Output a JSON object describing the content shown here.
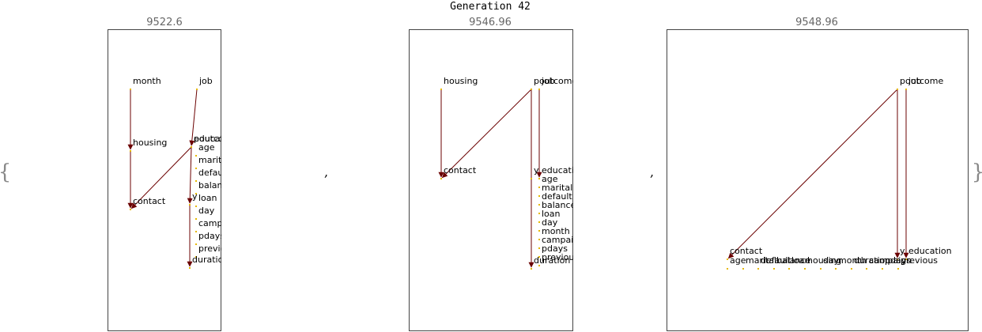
{
  "title": "Generation 42",
  "colors": {
    "edge": "#6b0000",
    "node": "#e6b800",
    "frame": "#444444"
  },
  "panels": [
    {
      "score": "9522.6",
      "nodes": [
        {
          "label": "month"
        },
        {
          "label": "job"
        },
        {
          "label": "housing"
        },
        {
          "label": "poutcome"
        },
        {
          "label": "education"
        },
        {
          "label": "age"
        },
        {
          "label": "marital"
        },
        {
          "label": "default"
        },
        {
          "label": "balance"
        },
        {
          "label": "loan"
        },
        {
          "label": "day"
        },
        {
          "label": "campaign"
        },
        {
          "label": "pdays"
        },
        {
          "label": "previous"
        },
        {
          "label": "contact"
        },
        {
          "label": "y"
        },
        {
          "label": "duration"
        }
      ],
      "edges": [
        [
          "month",
          "housing"
        ],
        [
          "housing",
          "contact"
        ],
        [
          "job",
          "education"
        ],
        [
          "poutcome",
          "contact"
        ],
        [
          "poutcome",
          "y"
        ],
        [
          "y",
          "duration"
        ]
      ]
    },
    {
      "score": "9546.96",
      "nodes": [
        {
          "label": "housing"
        },
        {
          "label": "poutcome"
        },
        {
          "label": "job"
        },
        {
          "label": "contact"
        },
        {
          "label": "y"
        },
        {
          "label": "education"
        },
        {
          "label": "age"
        },
        {
          "label": "marital"
        },
        {
          "label": "default"
        },
        {
          "label": "balance"
        },
        {
          "label": "loan"
        },
        {
          "label": "day"
        },
        {
          "label": "month"
        },
        {
          "label": "campaign"
        },
        {
          "label": "pdays"
        },
        {
          "label": "duration"
        },
        {
          "label": "previous"
        }
      ],
      "edges": [
        [
          "housing",
          "contact"
        ],
        [
          "poutcome",
          "contact"
        ],
        [
          "poutcome",
          "duration"
        ],
        [
          "job",
          "education"
        ]
      ]
    },
    {
      "score": "9548.96",
      "nodes": [
        {
          "label": "poutcome"
        },
        {
          "label": "job"
        },
        {
          "label": "contact"
        },
        {
          "label": "y"
        },
        {
          "label": "education"
        },
        {
          "label": "age"
        },
        {
          "label": "marital"
        },
        {
          "label": "default"
        },
        {
          "label": "balance"
        },
        {
          "label": "loan"
        },
        {
          "label": "housing"
        },
        {
          "label": "day"
        },
        {
          "label": "month"
        },
        {
          "label": "duration"
        },
        {
          "label": "campaign"
        },
        {
          "label": "pdays"
        },
        {
          "label": "previous"
        }
      ],
      "edges": [
        [
          "poutcome",
          "contact"
        ],
        [
          "poutcome",
          "y"
        ],
        [
          "job",
          "education"
        ]
      ]
    }
  ],
  "separators": {
    "open": "{",
    "close": "}",
    "comma": ","
  }
}
